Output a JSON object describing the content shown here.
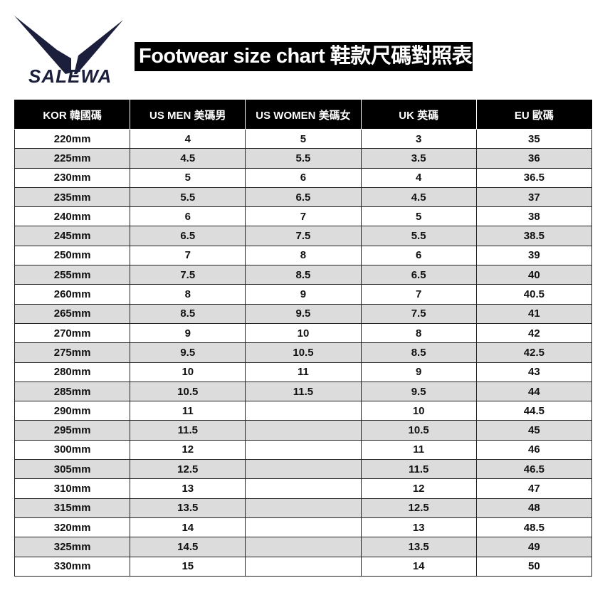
{
  "brand": {
    "name": "SALEWA",
    "color": "#1b1f3b"
  },
  "title": "Footwear size chart  鞋款尺碼對照表",
  "table": {
    "headers": [
      "KOR  韓國碼",
      "US MEN   美碼男",
      "US WOMEN  美碼女",
      "UK 英碼",
      "EU 歐碼"
    ],
    "rows": [
      [
        "220mm",
        "4",
        "5",
        "3",
        "35"
      ],
      [
        "225mm",
        "4.5",
        "5.5",
        "3.5",
        "36"
      ],
      [
        "230mm",
        "5",
        "6",
        "4",
        "36.5"
      ],
      [
        "235mm",
        "5.5",
        "6.5",
        "4.5",
        "37"
      ],
      [
        "240mm",
        "6",
        "7",
        "5",
        "38"
      ],
      [
        "245mm",
        "6.5",
        "7.5",
        "5.5",
        "38.5"
      ],
      [
        "250mm",
        "7",
        "8",
        "6",
        "39"
      ],
      [
        "255mm",
        "7.5",
        "8.5",
        "6.5",
        "40"
      ],
      [
        "260mm",
        "8",
        "9",
        "7",
        "40.5"
      ],
      [
        "265mm",
        "8.5",
        "9.5",
        "7.5",
        "41"
      ],
      [
        "270mm",
        "9",
        "10",
        "8",
        "42"
      ],
      [
        "275mm",
        "9.5",
        "10.5",
        "8.5",
        "42.5"
      ],
      [
        "280mm",
        "10",
        "11",
        "9",
        "43"
      ],
      [
        "285mm",
        "10.5",
        "11.5",
        "9.5",
        "44"
      ],
      [
        "290mm",
        "11",
        "",
        "10",
        "44.5"
      ],
      [
        "295mm",
        "11.5",
        "",
        "10.5",
        "45"
      ],
      [
        "300mm",
        "12",
        "",
        "11",
        "46"
      ],
      [
        "305mm",
        "12.5",
        "",
        "11.5",
        "46.5"
      ],
      [
        "310mm",
        "13",
        "",
        "12",
        "47"
      ],
      [
        "315mm",
        "13.5",
        "",
        "12.5",
        "48"
      ],
      [
        "320mm",
        "14",
        "",
        "13",
        "48.5"
      ],
      [
        "325mm",
        "14.5",
        "",
        "13.5",
        "49"
      ],
      [
        "330mm",
        "15",
        "",
        "14",
        "50"
      ]
    ]
  }
}
